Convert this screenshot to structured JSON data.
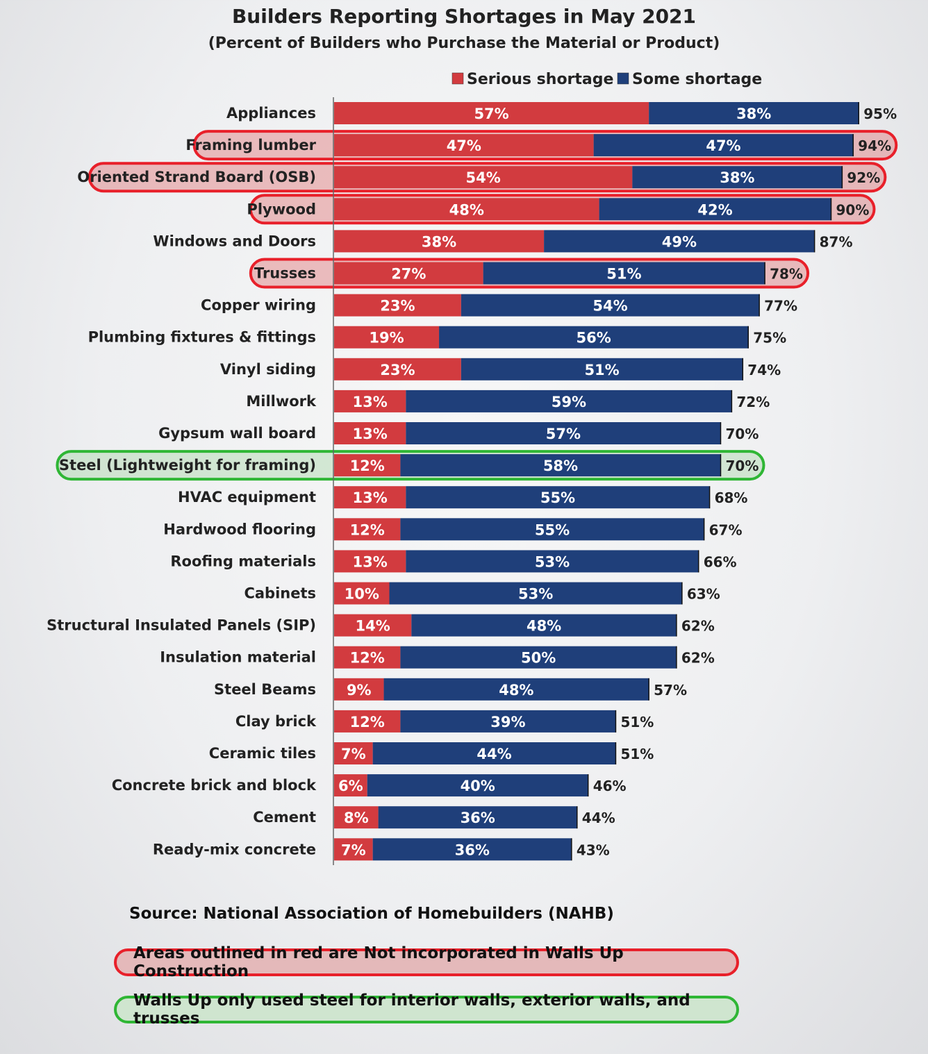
{
  "chart_data": {
    "type": "bar",
    "orientation": "horizontal",
    "stacked": true,
    "title": "Builders Reporting Shortages in May 2021",
    "subtitle": "(Percent of Builders who Purchase the Material or Product)",
    "categories": [
      "Appliances",
      "Framing lumber",
      "Oriented Strand Board (OSB)",
      "Plywood",
      "Windows and Doors",
      "Trusses",
      "Copper wiring",
      "Plumbing fixtures & fittings",
      "Vinyl siding",
      "Millwork",
      "Gypsum wall board",
      "Steel (Lightweight for framing)",
      "HVAC equipment",
      "Hardwood flooring",
      "Roofing materials",
      "Cabinets",
      "Structural Insulated Panels (SIP)",
      "Insulation material",
      "Steel Beams",
      "Clay brick",
      "Ceramic tiles",
      "Concrete brick and block",
      "Cement",
      "Ready-mix concrete"
    ],
    "series": [
      {
        "name": "Serious shortage",
        "color": "#d23b3f",
        "values": [
          57,
          47,
          54,
          48,
          38,
          27,
          23,
          19,
          23,
          13,
          13,
          12,
          13,
          12,
          13,
          10,
          14,
          12,
          9,
          12,
          7,
          6,
          8,
          7
        ]
      },
      {
        "name": "Some shortage",
        "color": "#1f3f7a",
        "values": [
          38,
          47,
          38,
          42,
          49,
          51,
          54,
          56,
          51,
          59,
          57,
          58,
          55,
          55,
          53,
          53,
          48,
          50,
          48,
          39,
          44,
          40,
          36,
          36
        ]
      }
    ],
    "totals": [
      95,
      94,
      92,
      90,
      87,
      78,
      77,
      75,
      74,
      72,
      70,
      70,
      68,
      67,
      66,
      63,
      62,
      62,
      57,
      51,
      51,
      46,
      44,
      43
    ],
    "legend_position": "top",
    "grid": false,
    "highlighted_red": [
      "Framing lumber",
      "Oriented Strand Board (OSB)",
      "Plywood",
      "Trusses"
    ],
    "highlighted_green": [
      "Steel (Lightweight for framing)"
    ]
  },
  "footer": {
    "source": "Source: National Association of Homebuilders (NAHB)",
    "note_red": "Areas outlined in red are Not incorporated in Walls Up Construction",
    "note_green": "Walls Up only used steel for interior walls, exterior walls, and trusses"
  }
}
